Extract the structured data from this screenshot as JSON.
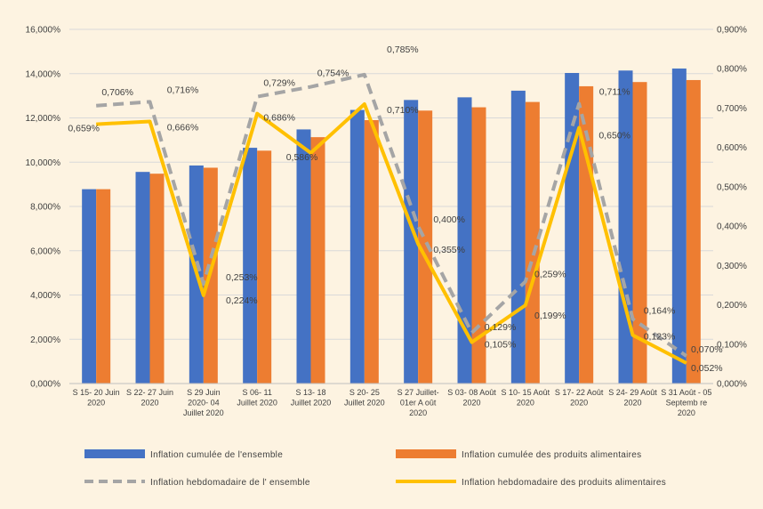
{
  "chart_data": {
    "type": "bar",
    "categories": [
      [
        "S 15- 20 Juin",
        "2020"
      ],
      [
        "S 22- 27 Juin",
        "2020"
      ],
      [
        "S 29 Juin",
        "2020- 04",
        "Juillet 2020"
      ],
      [
        "S 06- 11",
        "Juillet 2020"
      ],
      [
        "S 13- 18",
        "Juillet 2020"
      ],
      [
        "S 20- 25",
        "Juillet 2020"
      ],
      [
        "S 27 Juillet-",
        "01er A oût",
        "2020"
      ],
      [
        "S 03- 08 Août",
        "2020"
      ],
      [
        "S 10- 15 Août",
        "2020"
      ],
      [
        "S 17- 22 Août",
        "2020"
      ],
      [
        "S 24- 29 Août",
        "2020"
      ],
      [
        "S 31 Août - 05",
        "Septemb re",
        "2020"
      ]
    ],
    "y_left": {
      "ticks": [
        "0,000%",
        "2,000%",
        "4,000%",
        "6,000%",
        "8,000%",
        "10,000%",
        "12,000%",
        "14,000%",
        "16,000%"
      ],
      "ylim": [
        0,
        16
      ]
    },
    "y_right": {
      "ticks": [
        "0,000%",
        "0,100%",
        "0,200%",
        "0,300%",
        "0,400%",
        "0,500%",
        "0,600%",
        "0,700%",
        "0,800%",
        "0,900%"
      ],
      "ylim": [
        0,
        0.9
      ]
    },
    "series": [
      {
        "name": "Inflation cumulée de l'ensemble",
        "kind": "bar",
        "axis": "left",
        "color": "#4472c4",
        "values": [
          8.78,
          9.56,
          9.85,
          10.65,
          11.48,
          12.36,
          12.81,
          12.93,
          13.23,
          14.03,
          14.14,
          14.23
        ]
      },
      {
        "name": "Inflation cumulée des produits alimentaires",
        "kind": "bar",
        "axis": "left",
        "color": "#ed7d31",
        "values": [
          8.78,
          9.48,
          9.75,
          10.52,
          11.13,
          11.9,
          12.33,
          12.48,
          12.72,
          13.43,
          13.62,
          13.71
        ]
      },
      {
        "name": "Inflation hebdomadaire de l' ensemble",
        "kind": "line",
        "style": "dashed",
        "axis": "right",
        "color": "#a5a5a5",
        "values": [
          0.706,
          0.716,
          0.253,
          0.729,
          0.754,
          0.785,
          0.4,
          0.129,
          0.259,
          0.711,
          0.164,
          0.07
        ],
        "labels": [
          "0,706%",
          "0,716%",
          "0,253%",
          "0,729%",
          "0,754%",
          "0,785%",
          "0,400%",
          "0,129%",
          "0,259%",
          "0,711%",
          "0,164%",
          "0,070%"
        ]
      },
      {
        "name": "Inflation hebdomadaire des produits alimentaires",
        "kind": "line",
        "style": "solid",
        "axis": "right",
        "color": "#ffc000",
        "values": [
          0.659,
          0.666,
          0.224,
          0.686,
          0.586,
          0.71,
          0.355,
          0.105,
          0.199,
          0.65,
          0.123,
          0.052
        ],
        "labels": [
          "0,659%",
          "0,666%",
          "0,224%",
          "0,686%",
          "0,586%",
          "0,710%",
          "0,355%",
          "0,105%",
          "0,199%",
          "0,650%",
          "0,123%",
          "0,052%"
        ]
      }
    ],
    "legend": {
      "placement": "bottom",
      "items": [
        "Inflation cumulée de l'ensemble",
        "Inflation cumulée des produits alimentaires",
        "Inflation hebdomadaire de l' ensemble",
        "Inflation hebdomadaire des produits alimentaires"
      ]
    },
    "grid": "horizontal"
  }
}
